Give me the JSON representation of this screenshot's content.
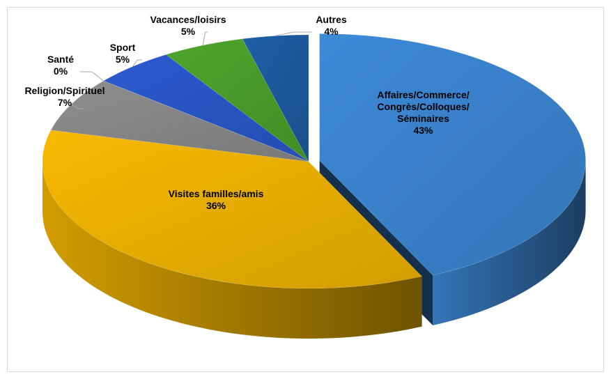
{
  "chart_data": {
    "type": "pie",
    "categories": [
      "Affaires/Commerce/ Congrès/Colloques/Séminaires",
      "Visites familles/amis",
      "Religion/Spirituel",
      "Santé",
      "Sport",
      "Vacances/loisirs",
      "Autres"
    ],
    "values": [
      43,
      36,
      7,
      0,
      5,
      5,
      4
    ],
    "value_labels": [
      "43%",
      "36%",
      "7%",
      "0%",
      "5%",
      "5%",
      "4%"
    ],
    "colors": [
      "#3d8ad8",
      "#f7b900",
      "#8e8e8e",
      "#c0504d",
      "#2c5bd0",
      "#4ea62c",
      "#1f5ea6"
    ]
  }
}
